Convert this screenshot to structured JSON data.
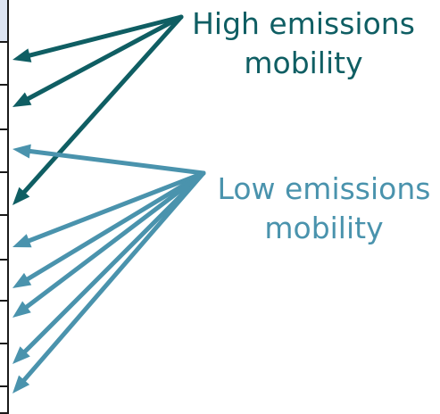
{
  "labels": {
    "high": {
      "line1": "High emissions",
      "line2": "mobility"
    },
    "low": {
      "line1": "Low emissions",
      "line2": "mobility"
    }
  },
  "colors": {
    "high": "#0f5e63",
    "low": "#4a93ad",
    "table_border": "#1a1a1a",
    "table_header_fill": "#dce4f2"
  },
  "groups": {
    "high": {
      "arrow_count": 3
    },
    "low": {
      "arrow_count": 6
    }
  }
}
